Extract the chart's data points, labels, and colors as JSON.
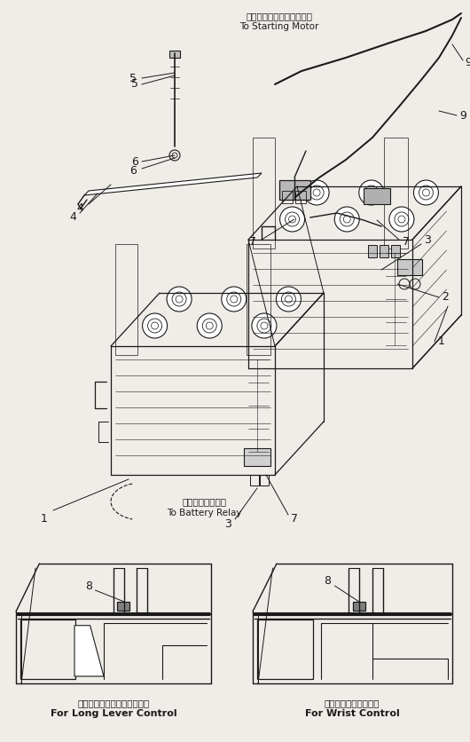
{
  "bg_color": "#f0ede8",
  "line_color": "#1a1a1a",
  "title_jp_top": "スターティングモーターへ",
  "title_en_top": "To Starting Motor",
  "title_jp_bottom": "バッテリリレーへ",
  "title_en_bottom": "To Battery Relay",
  "label_jp_left": "ロングレバーコントロール用",
  "label_en_left": "For Long Lever Control",
  "label_jp_right": "リストコントロール用",
  "label_en_right": "For Wrist Control",
  "figsize": [
    5.3,
    8.36
  ],
  "dpi": 100
}
